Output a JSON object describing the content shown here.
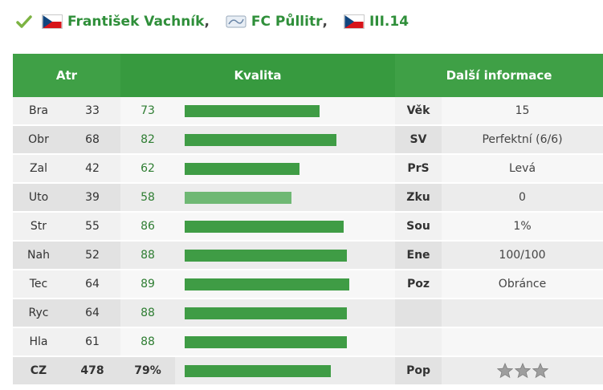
{
  "header": {
    "player_name": "František Vachník",
    "team_name": "FC Půllitr",
    "league": "III.14",
    "separator": ","
  },
  "table": {
    "headers": {
      "atr": "Atr",
      "kvalita": "Kvalita",
      "info": "Další informace"
    },
    "rows": [
      {
        "attr": "Bra",
        "value": "33",
        "quality": "73",
        "quality_pct": 73,
        "light": false
      },
      {
        "attr": "Obr",
        "value": "68",
        "quality": "82",
        "quality_pct": 82,
        "light": false
      },
      {
        "attr": "Zal",
        "value": "42",
        "quality": "62",
        "quality_pct": 62,
        "light": false
      },
      {
        "attr": "Uto",
        "value": "39",
        "quality": "58",
        "quality_pct": 58,
        "light": true
      },
      {
        "attr": "Str",
        "value": "55",
        "quality": "86",
        "quality_pct": 86,
        "light": false
      },
      {
        "attr": "Nah",
        "value": "52",
        "quality": "88",
        "quality_pct": 88,
        "light": false
      },
      {
        "attr": "Tec",
        "value": "64",
        "quality": "89",
        "quality_pct": 89,
        "light": false
      },
      {
        "attr": "Ryc",
        "value": "64",
        "quality": "88",
        "quality_pct": 88,
        "light": false
      },
      {
        "attr": "Hla",
        "value": "61",
        "quality": "88",
        "quality_pct": 88,
        "light": false
      }
    ],
    "info": [
      {
        "key": "Věk",
        "value": "15"
      },
      {
        "key": "SV",
        "value": "Perfektní (6/6)"
      },
      {
        "key": "PrS",
        "value": "Levá"
      },
      {
        "key": "Zku",
        "value": "0"
      },
      {
        "key": "Sou",
        "value": "1%"
      },
      {
        "key": "Ene",
        "value": "100/100"
      },
      {
        "key": "Poz",
        "value": "Obránce"
      },
      {
        "key": "",
        "value": ""
      },
      {
        "key": "",
        "value": ""
      }
    ],
    "footer": {
      "attr": "CZ",
      "value": "478",
      "quality": "79%",
      "quality_pct": 79,
      "key": "Pop",
      "stars": 0,
      "stars_max": 3
    }
  },
  "colors": {
    "accent": "#3fa046",
    "bar": "#3f9c45",
    "bar_light": "#6fb874",
    "star": "#9e9e9e"
  }
}
